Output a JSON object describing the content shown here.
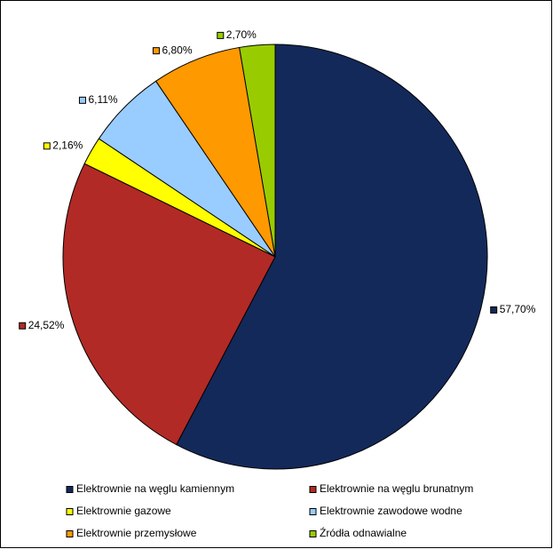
{
  "chart_data": {
    "type": "pie",
    "categories": [
      "Elektrownie na węglu kamiennym",
      "Elektrownie na węglu brunatnym",
      "Elektrownie gazowe",
      "Elektrownie zawodowe wodne",
      "Elektrownie przemysłowe",
      "Źródła odnawialne"
    ],
    "values": [
      57.7,
      24.52,
      2.16,
      6.11,
      6.8,
      2.7
    ],
    "value_labels": [
      "57,70%",
      "24,52%",
      "2,16%",
      "6,11%",
      "6,80%",
      "2,70%"
    ],
    "colors": [
      "#13295a",
      "#b22a25",
      "#ffff00",
      "#99ccff",
      "#ff9900",
      "#99cc00"
    ],
    "legend": "bottom"
  }
}
